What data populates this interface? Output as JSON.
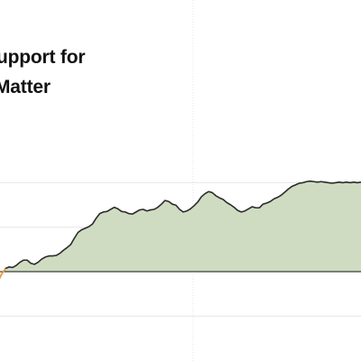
{
  "chart_data": {
    "type": "area",
    "title_lines": [
      "upport for",
      "Matter"
    ],
    "x": [
      0,
      1,
      2,
      3,
      4,
      5,
      6,
      7,
      8,
      9,
      10,
      11,
      12,
      13,
      14,
      15,
      16,
      17,
      18,
      19,
      20,
      21,
      22,
      23,
      24,
      25,
      26,
      27,
      28,
      29,
      30,
      31,
      32,
      33,
      34,
      35,
      36,
      37,
      38,
      39,
      40,
      41,
      42,
      43,
      44,
      45,
      46,
      47,
      48,
      49,
      50,
      51,
      52,
      53,
      54,
      55,
      56,
      57,
      58,
      59,
      60,
      61,
      62,
      63,
      64,
      65,
      66,
      67,
      68,
      69,
      70,
      71,
      72,
      73,
      74,
      75,
      76,
      77,
      78,
      79,
      80,
      81,
      82,
      83,
      84,
      85,
      86,
      87,
      88,
      89,
      90,
      91,
      92,
      93,
      94,
      95,
      96,
      97,
      98,
      99,
      100
    ],
    "y": [
      -1.8,
      -0.4,
      0.6,
      0.9,
      0.8,
      1.2,
      1.8,
      2.2,
      2.2,
      1.6,
      1.4,
      1.8,
      2.4,
      2.8,
      3.0,
      3.0,
      3.1,
      3.5,
      4.1,
      4.6,
      5.2,
      6.4,
      7.5,
      8.0,
      8.3,
      8.6,
      9.1,
      10.2,
      11.1,
      11.4,
      11.5,
      11.9,
      12.3,
      12.0,
      11.5,
      11.4,
      11.1,
      11.0,
      11.4,
      11.8,
      11.9,
      11.6,
      11.8,
      11.9,
      12.3,
      12.9,
      13.6,
      13.4,
      12.9,
      12.7,
      11.9,
      11.4,
      11.6,
      12.0,
      12.6,
      13.3,
      14.3,
      14.9,
      15.3,
      15.1,
      14.5,
      14.1,
      13.8,
      13.2,
      12.8,
      12.3,
      11.7,
      11.4,
      11.6,
      12.0,
      12.4,
      12.2,
      12.2,
      12.9,
      13.1,
      13.4,
      13.9,
      14.2,
      14.6,
      15.2,
      15.8,
      16.3,
      16.6,
      16.9,
      17.0,
      17.2,
      17.3,
      17.2,
      17.1,
      17.2,
      17.1,
      17.0,
      16.9,
      17.0,
      17.1,
      17.0,
      17.1,
      17.0,
      17.1,
      17.0,
      17.1
    ],
    "orange_segment_end_x": 2,
    "baseline": 0,
    "ylim": [
      -10,
      20
    ],
    "grid": true,
    "colors": {
      "fill": "#cfdcc2",
      "line": "#2b2b2b",
      "neutral_segment": "#e8a243",
      "baseline": "#121212",
      "gridline": "#e6e6e6"
    }
  }
}
